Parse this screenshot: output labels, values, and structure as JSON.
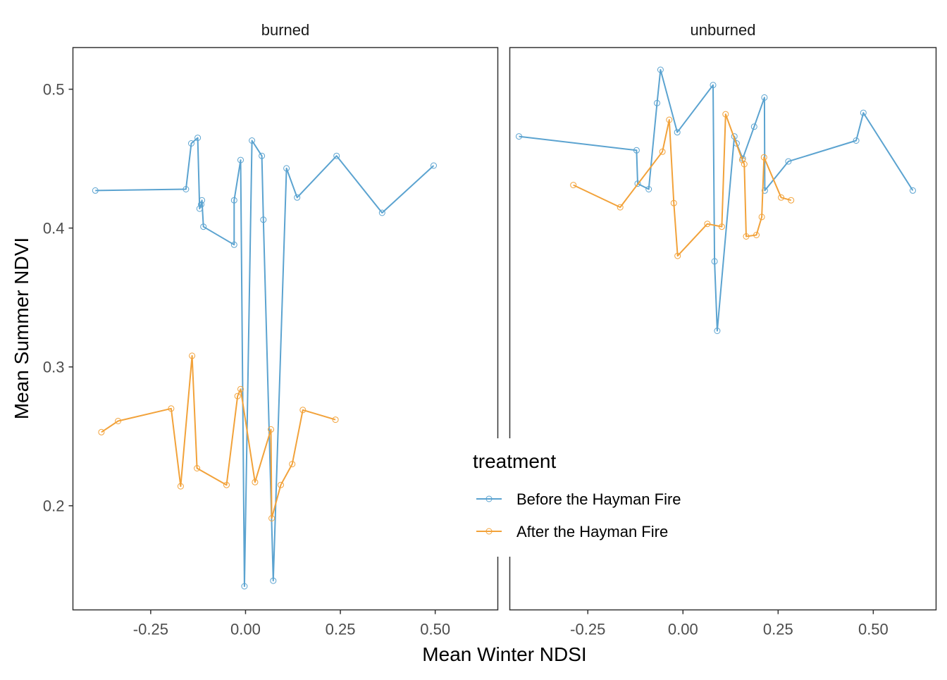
{
  "chart_data": {
    "type": "line",
    "xlabel": "Mean Winter NDSI",
    "ylabel": "Mean Summer NDVI",
    "xlim": [
      -0.455,
      0.665
    ],
    "ylim": [
      0.125,
      0.53
    ],
    "x_ticks": [
      -0.25,
      0.0,
      0.25,
      0.5
    ],
    "x_tick_labels": [
      "-0.25",
      "0.00",
      "0.25",
      "0.50"
    ],
    "y_ticks": [
      0.2,
      0.3,
      0.4,
      0.5
    ],
    "y_tick_labels": [
      "0.2",
      "0.3",
      "0.4",
      "0.5"
    ],
    "grid": false,
    "legend": {
      "title": "treatment",
      "placement": "center-right",
      "entries": [
        "Before the Hayman Fire",
        "After the Hayman Fire"
      ]
    },
    "colors": {
      "Before the Hayman Fire": "#5ba3d0",
      "After the Hayman Fire": "#f2a23a"
    },
    "panels": [
      {
        "title": "burned",
        "series": [
          {
            "name": "Before the Hayman Fire",
            "points": [
              [
                -0.396,
                0.427
              ],
              [
                -0.157,
                0.428
              ],
              [
                -0.143,
                0.461
              ],
              [
                -0.126,
                0.465
              ],
              [
                -0.121,
                0.414
              ],
              [
                -0.117,
                0.417
              ],
              [
                -0.115,
                0.42
              ],
              [
                -0.111,
                0.401
              ],
              [
                -0.03,
                0.388
              ],
              [
                -0.03,
                0.42
              ],
              [
                -0.013,
                0.449
              ],
              [
                -0.003,
                0.142
              ],
              [
                0.017,
                0.463
              ],
              [
                0.043,
                0.452
              ],
              [
                0.047,
                0.406
              ],
              [
                0.073,
                0.146
              ],
              [
                0.108,
                0.443
              ],
              [
                0.136,
                0.422
              ],
              [
                0.24,
                0.452
              ],
              [
                0.36,
                0.411
              ],
              [
                0.496,
                0.445
              ]
            ]
          },
          {
            "name": "After the Hayman Fire",
            "points": [
              [
                -0.38,
                0.253
              ],
              [
                -0.336,
                0.261
              ],
              [
                -0.196,
                0.27
              ],
              [
                -0.171,
                0.214
              ],
              [
                -0.141,
                0.308
              ],
              [
                -0.128,
                0.227
              ],
              [
                -0.05,
                0.215
              ],
              [
                -0.021,
                0.279
              ],
              [
                -0.013,
                0.284
              ],
              [
                0.025,
                0.217
              ],
              [
                0.067,
                0.255
              ],
              [
                0.069,
                0.191
              ],
              [
                0.093,
                0.215
              ],
              [
                0.123,
                0.23
              ],
              [
                0.151,
                0.269
              ],
              [
                0.237,
                0.262
              ]
            ]
          }
        ]
      },
      {
        "title": "unburned",
        "series": [
          {
            "name": "Before the Hayman Fire",
            "points": [
              [
                -0.431,
                0.466
              ],
              [
                -0.122,
                0.456
              ],
              [
                -0.119,
                0.432
              ],
              [
                -0.09,
                0.428
              ],
              [
                -0.068,
                0.49
              ],
              [
                -0.059,
                0.514
              ],
              [
                -0.015,
                0.469
              ],
              [
                0.079,
                0.503
              ],
              [
                0.083,
                0.376
              ],
              [
                0.09,
                0.326
              ],
              [
                0.135,
                0.466
              ],
              [
                0.141,
                0.461
              ],
              [
                0.157,
                0.45
              ],
              [
                0.187,
                0.473
              ],
              [
                0.214,
                0.494
              ],
              [
                0.215,
                0.427
              ],
              [
                0.277,
                0.448
              ],
              [
                0.455,
                0.463
              ],
              [
                0.474,
                0.483
              ],
              [
                0.604,
                0.427
              ]
            ]
          },
          {
            "name": "After the Hayman Fire",
            "points": [
              [
                -0.288,
                0.431
              ],
              [
                -0.165,
                0.415
              ],
              [
                -0.054,
                0.455
              ],
              [
                -0.036,
                0.478
              ],
              [
                -0.024,
                0.418
              ],
              [
                -0.014,
                0.38
              ],
              [
                0.064,
                0.403
              ],
              [
                0.102,
                0.401
              ],
              [
                0.112,
                0.482
              ],
              [
                0.156,
                0.449
              ],
              [
                0.161,
                0.446
              ],
              [
                0.166,
                0.394
              ],
              [
                0.193,
                0.395
              ],
              [
                0.207,
                0.408
              ],
              [
                0.213,
                0.451
              ],
              [
                0.258,
                0.422
              ],
              [
                0.284,
                0.42
              ]
            ]
          }
        ]
      }
    ]
  }
}
